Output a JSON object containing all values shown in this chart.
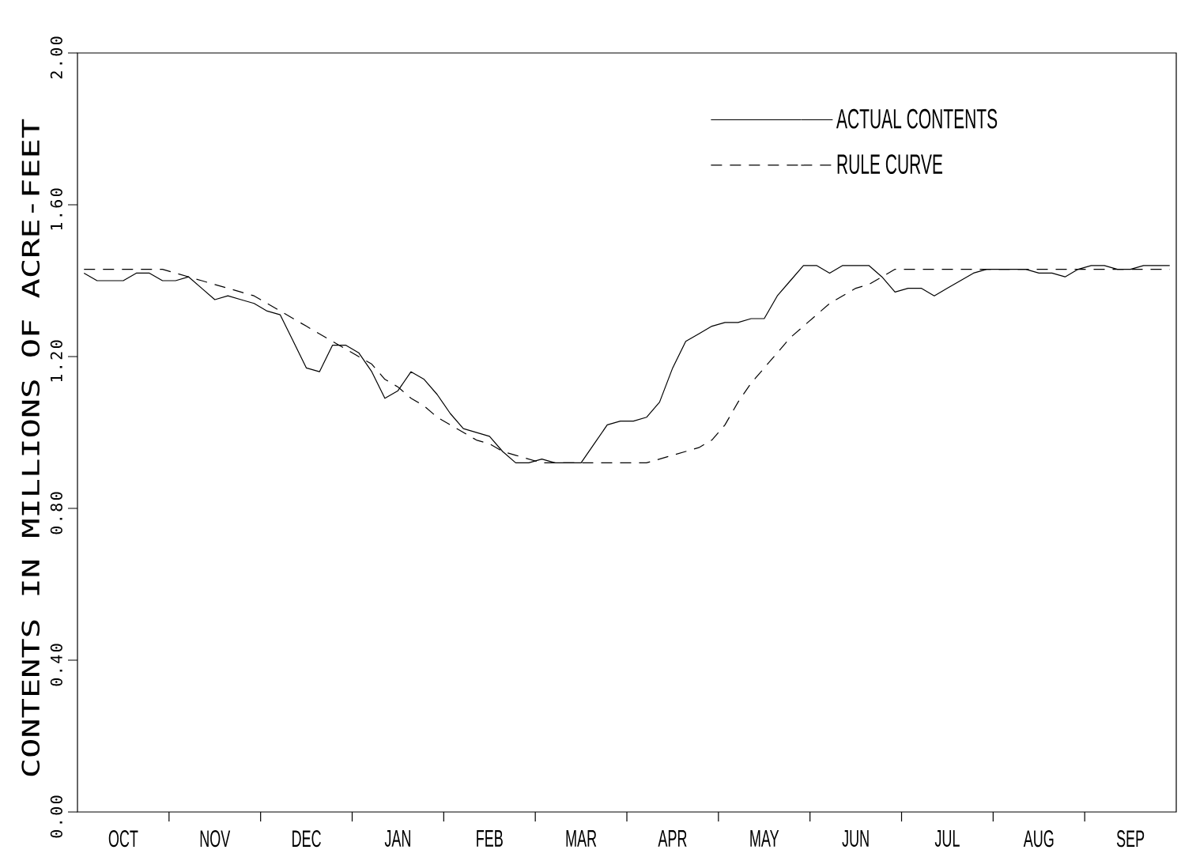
{
  "chart_data": {
    "type": "line",
    "ylabel": "CONTENTS IN MILLIONS OF ACRE-FEET",
    "categories": [
      null,
      null,
      null,
      "OCT",
      null,
      null,
      null,
      null,
      null,
      null,
      "NOV",
      null,
      null,
      null,
      null,
      null,
      null,
      "DEC",
      null,
      null,
      null,
      null,
      null,
      null,
      "JAN",
      null,
      null,
      null,
      null,
      null,
      null,
      "FEB",
      null,
      null,
      null,
      null,
      null,
      null,
      "MAR",
      null,
      null,
      null,
      null,
      null,
      null,
      "APR",
      null,
      null,
      null,
      null,
      null,
      null,
      "MAY",
      null,
      null,
      null,
      null,
      null,
      null,
      "JUN",
      null,
      null,
      null,
      null,
      null,
      null,
      "JUL",
      null,
      null,
      null,
      null,
      null,
      null,
      "AUG",
      null,
      null,
      null,
      null,
      null,
      null,
      "SEP",
      null,
      null,
      null
    ],
    "ylim": [
      0,
      2
    ],
    "yticks": [
      {
        "value": 0,
        "label": "0.00"
      },
      {
        "value": 0.4,
        "label": "0.40"
      },
      {
        "value": 0.8,
        "label": "0.80"
      },
      {
        "value": 1.2,
        "label": "1.20"
      },
      {
        "value": 1.6,
        "label": "1.60"
      },
      {
        "value": 2,
        "label": "2.00"
      }
    ],
    "legend": "top right",
    "series": [
      {
        "name": "ACTUAL CONTENTS",
        "color": "#000000",
        "line_style": "solid",
        "values": [
          1.42,
          1.4,
          1.4,
          1.4,
          1.42,
          1.42,
          1.4,
          1.4,
          1.41,
          1.38,
          1.35,
          1.36,
          1.35,
          1.34,
          1.32,
          1.31,
          1.24,
          1.17,
          1.16,
          1.23,
          1.23,
          1.21,
          1.16,
          1.09,
          1.11,
          1.16,
          1.14,
          1.1,
          1.05,
          1.01,
          1.0,
          0.99,
          0.95,
          0.92,
          0.92,
          0.93,
          0.92,
          0.92,
          0.92,
          0.97,
          1.02,
          1.03,
          1.03,
          1.04,
          1.08,
          1.17,
          1.24,
          1.26,
          1.28,
          1.29,
          1.29,
          1.3,
          1.3,
          1.36,
          1.4,
          1.44,
          1.44,
          1.42,
          1.44,
          1.44,
          1.44,
          1.41,
          1.37,
          1.38,
          1.38,
          1.36,
          1.38,
          1.4,
          1.42,
          1.43,
          1.43,
          1.43,
          1.43,
          1.42,
          1.42,
          1.41,
          1.43,
          1.44,
          1.44,
          1.43,
          1.43,
          1.44,
          1.44,
          1.44
        ]
      },
      {
        "name": "RULE CURVE",
        "color": "#000000",
        "line_style": "dashed",
        "values": [
          1.43,
          1.43,
          1.43,
          1.43,
          1.43,
          1.43,
          1.43,
          1.42,
          1.41,
          1.4,
          1.39,
          1.38,
          1.37,
          1.36,
          1.34,
          1.32,
          1.3,
          1.28,
          1.26,
          1.24,
          1.22,
          1.2,
          1.18,
          1.14,
          1.12,
          1.09,
          1.07,
          1.04,
          1.02,
          1.0,
          0.98,
          0.97,
          0.95,
          0.94,
          0.93,
          0.92,
          0.92,
          0.92,
          0.92,
          0.92,
          0.92,
          0.92,
          0.92,
          0.92,
          0.93,
          0.94,
          0.95,
          0.96,
          0.98,
          1.02,
          1.08,
          1.13,
          1.17,
          1.21,
          1.25,
          1.28,
          1.31,
          1.34,
          1.36,
          1.38,
          1.39,
          1.41,
          1.43,
          1.43,
          1.43,
          1.43,
          1.43,
          1.43,
          1.43,
          1.43,
          1.43,
          1.43,
          1.43,
          1.43,
          1.43,
          1.43,
          1.43,
          1.43,
          1.43,
          1.43,
          1.43,
          1.43,
          1.43,
          1.43
        ]
      }
    ]
  }
}
